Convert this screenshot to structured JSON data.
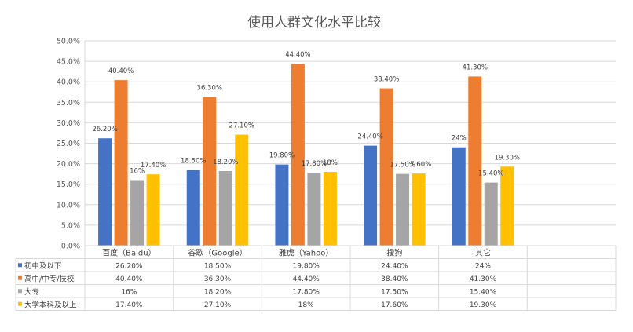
{
  "chart_data": {
    "type": "bar",
    "title": "使用人群文化水平比较",
    "categories": [
      "百度（Baidu）",
      "谷歌（Google）",
      "雅虎（Yahoo）",
      "搜狗",
      "其它"
    ],
    "ylim": [
      0,
      50
    ],
    "ytick_step": 5,
    "ytick_format": "percent_1dp",
    "grid": true,
    "legend_placement": "data-table-left",
    "series": [
      {
        "name": "初中及以下",
        "color": "#4472C4",
        "values": [
          26.2,
          18.5,
          19.8,
          24.4,
          24
        ],
        "labels": [
          "26.20%",
          "18.50%",
          "19.80%",
          "24.40%",
          "24%"
        ]
      },
      {
        "name": "高中/中专/技校",
        "color": "#ED7D31",
        "values": [
          40.4,
          36.3,
          44.4,
          38.4,
          41.3
        ],
        "labels": [
          "40.40%",
          "36.30%",
          "44.40%",
          "38.40%",
          "41.30%"
        ]
      },
      {
        "name": "大专",
        "color": "#A5A5A5",
        "values": [
          16,
          18.2,
          17.8,
          17.5,
          15.4
        ],
        "labels": [
          "16%",
          "18.20%",
          "17.80%",
          "17.50%",
          "15.40%"
        ]
      },
      {
        "name": "大学本科及以上",
        "color": "#FFC000",
        "values": [
          17.4,
          27.1,
          18,
          17.6,
          19.3
        ],
        "labels": [
          "17.40%",
          "27.10%",
          "18%",
          "17.60%",
          "19.30%"
        ]
      }
    ]
  }
}
